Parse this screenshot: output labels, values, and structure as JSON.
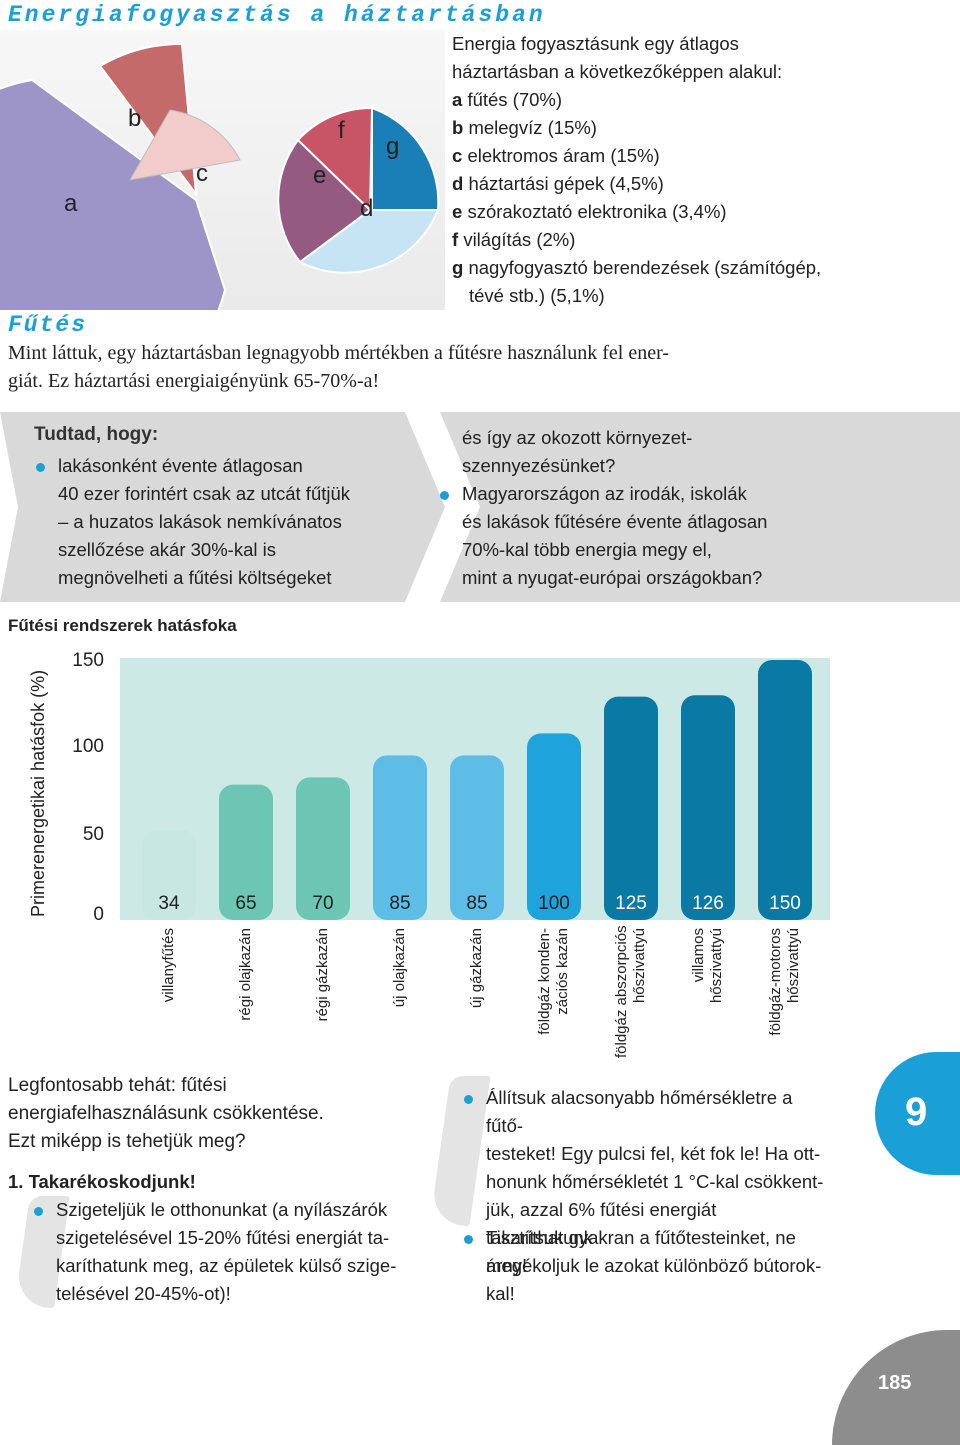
{
  "header": {
    "title": "Energiafogyasztás a háztartásban"
  },
  "pie": {
    "labels": [
      "a",
      "b",
      "c",
      "d",
      "e",
      "f",
      "g"
    ],
    "colors": {
      "a": "#9d94c8",
      "b": "#c46a6a",
      "c": "#f2ccca",
      "d": "#c6e4f4",
      "e": "#945a82",
      "f": "#c75566",
      "g": "#1a7fb6"
    }
  },
  "legend": {
    "intro_1": "Energia fogyasztásunk egy átlagos",
    "intro_2": "háztartásban a következőképpen alakul:",
    "items": [
      {
        "key": "a",
        "text": "fűtés (70%)"
      },
      {
        "key": "b",
        "text": "melegvíz (15%)"
      },
      {
        "key": "c",
        "text": "elektromos áram (15%)"
      },
      {
        "key": "d",
        "text": "háztartási gépek (4,5%)"
      },
      {
        "key": "e",
        "text": "szórakoztató elektronika (3,4%)"
      },
      {
        "key": "f",
        "text": "világítás (2%)"
      },
      {
        "key": "g",
        "text": "nagyfogyasztó berendezések (számítógép,"
      }
    ],
    "item_g_cont": "tévé stb.) (5,1%)"
  },
  "section": {
    "title": "Fűtés",
    "intro_1": "Mint láttuk, egy háztartásban legnagyobb mértékben a fűtésre használunk fel ener-",
    "intro_2": "giát. Ez háztartási energiaigényünk 65-70%-a!"
  },
  "tips": {
    "heading": "Tudtad, hogy:",
    "left": [
      "lakásonként évente átlagosan",
      "40 ezer forintért csak az utcát fűtjük",
      "– a huzatos lakások nemkívánatos",
      "szellőzése akár 30%-kal is",
      "megnövelheti a fűtési költségeket"
    ],
    "right_top": [
      "és így az okozott környezet-",
      "szennyezésünket?"
    ],
    "right": [
      "Magyarországon az irodák, iskolák",
      "és lakások fűtésére évente átlagosan",
      "70%-kal több energia megy el,",
      "mint a nyugat-európai országokban?"
    ]
  },
  "chart_data": {
    "type": "bar",
    "title": "Fűtési rendszerek hatásfoka",
    "ylabel": "Primerenergetikai hatásfok (%)",
    "ylim": [
      0,
      150
    ],
    "yticks": [
      "0",
      "50",
      "100",
      "150"
    ],
    "categories": [
      [
        "villanyfűtés"
      ],
      [
        "régi olajkazán"
      ],
      [
        "régi gázkazán"
      ],
      [
        "új olajkazán"
      ],
      [
        "új gázkazán"
      ],
      [
        "földgáz konden-",
        "zációs kazán"
      ],
      [
        "földgáz abszorpciós",
        "hőszivattyú"
      ],
      [
        "villamos",
        "hőszivattyú"
      ],
      [
        "földgáz-motoros",
        "hőszivattyú"
      ]
    ],
    "values": [
      34,
      65,
      70,
      85,
      85,
      100,
      125,
      126,
      150
    ],
    "value_labels": [
      "34",
      "65",
      "70",
      "85",
      "85",
      "100",
      "125",
      "126",
      "150"
    ],
    "colors": [
      "#c9e7e2",
      "#6cc6b3",
      "#6cc6b3",
      "#5ebde6",
      "#5ebde6",
      "#1ea3dc",
      "#0a7aa5",
      "#0a7aa5",
      "#0a7aa5"
    ],
    "label_colors": [
      "#222222",
      "#222222",
      "#222222",
      "#222222",
      "#222222",
      "#222222",
      "#ffffff",
      "#ffffff",
      "#ffffff"
    ],
    "background": "#cde9e6",
    "grid": false
  },
  "bottom": {
    "lead_1": "Legfontosabb tehát: fűtési",
    "lead_2": "energiafelhasználásunk csökkentése.",
    "lead_3": "Ezt miképp is tehetjük meg?",
    "step": "1. Takarékoskodjunk!",
    "left_bullet": [
      "Szigeteljük le otthonunkat (a nyílászárók",
      "szigetelésével 15-20% fűtési energiát ta-",
      "karíthatunk meg, az épületek külső szige-",
      "telésével 20-45%-ot)!"
    ],
    "right_bullet_1": [
      "Állítsuk alacsonyabb hőmérsékletre a fűtő-",
      "testeket! Egy pulcsi fel, két fok le! Ha ott-",
      "honunk hőmérsékletét 1 °C-kal csökkent-",
      "jük, azzal 6% fűtési energiát takaríthatunk",
      "meg!"
    ],
    "right_bullet_2": [
      "Tisztítsuk gyakran a fűtőtesteinket, ne",
      "árnyékoljuk le azokat különböző bútorok-",
      "kal!"
    ]
  },
  "chapter": "9",
  "page_number": "185"
}
